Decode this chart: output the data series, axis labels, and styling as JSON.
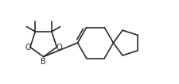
{
  "background": "#ffffff",
  "line_color": "#222222",
  "line_width": 1.15,
  "figsize": [
    2.25,
    1.06
  ],
  "dpi": 100,
  "xlim": [
    0.0,
    10.5
  ],
  "ylim": [
    0.8,
    5.2
  ]
}
